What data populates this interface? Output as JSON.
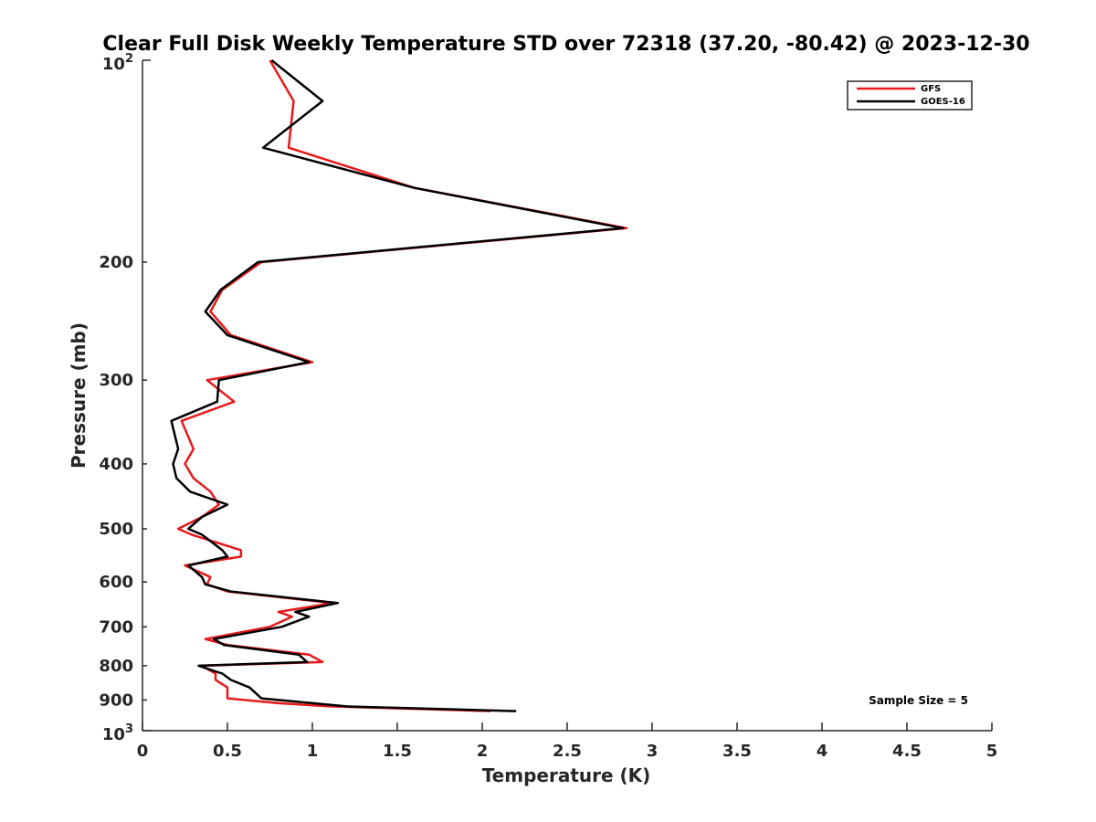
{
  "chart_data": {
    "type": "line",
    "title": "Clear Full Disk Weekly Temperature STD over 72318 (37.20, -80.42) @ 2023-12-30",
    "xlabel": "Temperature (K)",
    "ylabel": "Pressure (mb)",
    "xlim": [
      0,
      5
    ],
    "ylim": [
      100,
      1000
    ],
    "yscale": "log",
    "y_reversed": true,
    "grid": false,
    "legend_position": "top-right",
    "x_ticks": [
      "0",
      "0.5",
      "1",
      "1.5",
      "2",
      "2.5",
      "3",
      "3.5",
      "4",
      "4.5",
      "5"
    ],
    "x_tick_values": [
      0,
      0.5,
      1,
      1.5,
      2,
      2.5,
      3,
      3.5,
      4,
      4.5,
      5
    ],
    "y_ticks": [
      "200",
      "300",
      "400",
      "500",
      "600",
      "700",
      "800",
      "900"
    ],
    "y_tick_values": [
      200,
      300,
      400,
      500,
      600,
      700,
      800,
      900
    ],
    "y_tick_base": "10",
    "y_tick_top_exp": "2",
    "y_tick_bottom_exp": "3",
    "annotation": "Sample Size = 5",
    "series": [
      {
        "name": "GFS",
        "color": "#e8191b",
        "points": [
          [
            0.75,
            100
          ],
          [
            0.89,
            115
          ],
          [
            0.86,
            135
          ],
          [
            1.6,
            155
          ],
          [
            2.85,
            178
          ],
          [
            0.7,
            200
          ],
          [
            0.47,
            220
          ],
          [
            0.4,
            237
          ],
          [
            0.52,
            257
          ],
          [
            1.0,
            282
          ],
          [
            0.38,
            300
          ],
          [
            0.54,
            323
          ],
          [
            0.23,
            345
          ],
          [
            0.3,
            380
          ],
          [
            0.25,
            400
          ],
          [
            0.3,
            420
          ],
          [
            0.4,
            440
          ],
          [
            0.45,
            460
          ],
          [
            0.35,
            480
          ],
          [
            0.21,
            500
          ],
          [
            0.29,
            510
          ],
          [
            0.58,
            538
          ],
          [
            0.58,
            550
          ],
          [
            0.25,
            567
          ],
          [
            0.4,
            590
          ],
          [
            0.38,
            605
          ],
          [
            0.5,
            620
          ],
          [
            1.12,
            645
          ],
          [
            0.8,
            665
          ],
          [
            0.88,
            676
          ],
          [
            0.75,
            700
          ],
          [
            0.37,
            730
          ],
          [
            0.5,
            745
          ],
          [
            0.98,
            770
          ],
          [
            1.06,
            790
          ],
          [
            0.35,
            800
          ],
          [
            0.43,
            822
          ],
          [
            0.43,
            840
          ],
          [
            0.5,
            862
          ],
          [
            0.5,
            895
          ],
          [
            0.8,
            910
          ],
          [
            1.1,
            920
          ],
          [
            2.05,
            935
          ]
        ]
      },
      {
        "name": "GOES-16",
        "color": "#000000",
        "points": [
          [
            0.76,
            100
          ],
          [
            1.06,
            115
          ],
          [
            0.71,
            135
          ],
          [
            1.6,
            155
          ],
          [
            2.83,
            178
          ],
          [
            0.68,
            200
          ],
          [
            0.46,
            220
          ],
          [
            0.37,
            237
          ],
          [
            0.5,
            257
          ],
          [
            0.98,
            282
          ],
          [
            0.45,
            300
          ],
          [
            0.44,
            323
          ],
          [
            0.17,
            345
          ],
          [
            0.21,
            380
          ],
          [
            0.18,
            400
          ],
          [
            0.2,
            420
          ],
          [
            0.28,
            440
          ],
          [
            0.5,
            460
          ],
          [
            0.35,
            480
          ],
          [
            0.27,
            500
          ],
          [
            0.35,
            510
          ],
          [
            0.47,
            538
          ],
          [
            0.5,
            550
          ],
          [
            0.27,
            567
          ],
          [
            0.35,
            590
          ],
          [
            0.37,
            605
          ],
          [
            0.52,
            620
          ],
          [
            1.15,
            645
          ],
          [
            0.9,
            665
          ],
          [
            0.98,
            676
          ],
          [
            0.82,
            700
          ],
          [
            0.42,
            730
          ],
          [
            0.48,
            745
          ],
          [
            0.92,
            770
          ],
          [
            0.97,
            790
          ],
          [
            0.33,
            800
          ],
          [
            0.47,
            822
          ],
          [
            0.52,
            840
          ],
          [
            0.63,
            862
          ],
          [
            0.7,
            895
          ],
          [
            1.0,
            910
          ],
          [
            1.2,
            920
          ],
          [
            2.2,
            935
          ]
        ]
      }
    ]
  }
}
